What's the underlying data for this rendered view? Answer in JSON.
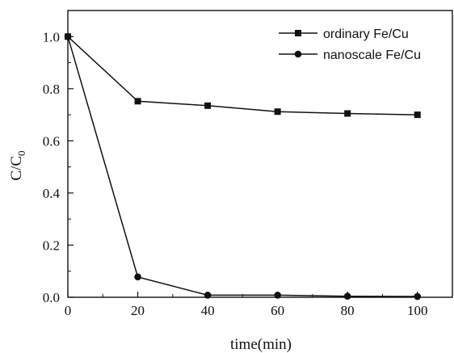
{
  "chart_data": {
    "type": "line",
    "title": "",
    "xlabel": "time(min)",
    "ylabel": {
      "main": "C/C",
      "subscript": "0"
    },
    "xlim": [
      0,
      110
    ],
    "ylim": [
      0,
      1.1
    ],
    "x_ticks": [
      0,
      20,
      40,
      60,
      80,
      100
    ],
    "y_ticks": [
      0.0,
      0.2,
      0.4,
      0.6,
      0.8,
      1.0
    ],
    "x_tick_labels": [
      "0",
      "20",
      "40",
      "60",
      "80",
      "100"
    ],
    "y_tick_labels": [
      "0.0",
      "0.2",
      "0.4",
      "0.6",
      "0.8",
      "1.0"
    ],
    "grid": false,
    "legend_position": "top-right",
    "x": [
      0,
      20,
      40,
      60,
      80,
      100
    ],
    "series": [
      {
        "name": "ordinary Fe/Cu",
        "marker": "square",
        "color": "#111111",
        "values": [
          1.0,
          0.752,
          0.735,
          0.712,
          0.705,
          0.7
        ]
      },
      {
        "name": "nanoscale Fe/Cu",
        "marker": "circle",
        "color": "#111111",
        "values": [
          1.0,
          0.078,
          0.008,
          0.008,
          0.004,
          0.003
        ]
      }
    ]
  }
}
